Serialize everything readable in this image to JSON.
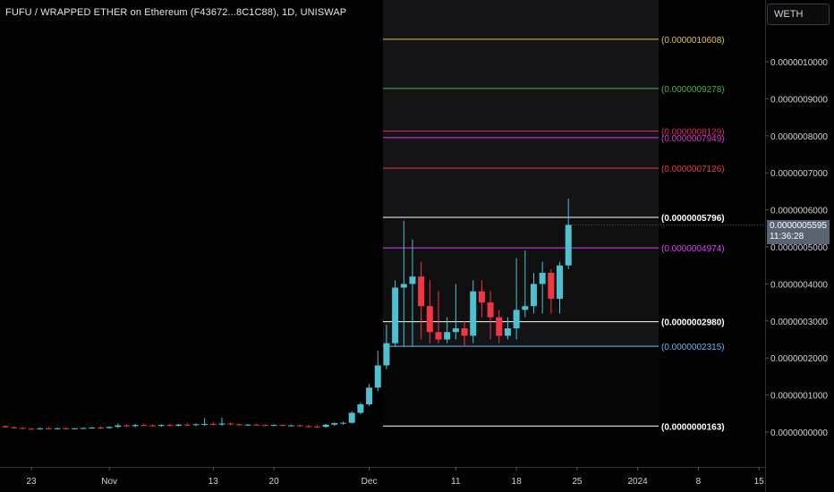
{
  "header": {
    "title": "FUFU / WRAPPED ETHER on Ethereum (F43672...8C1C88), 1D, UNISWAP"
  },
  "currency_selector": {
    "label": "WETH"
  },
  "last_price_tag": {
    "price": "0.0000005595",
    "countdown": "11:36:28"
  },
  "colors": {
    "up": "#26a69a",
    "up_fill": "#4ec0cf",
    "down": "#f23645",
    "background": "#000000"
  },
  "chart_data": {
    "type": "candlestick",
    "y_axis": {
      "range": [
        -1.3e-08,
        1.1e-06
      ],
      "ticks": [
        {
          "value": 0.0,
          "label": "0.0000000000"
        },
        {
          "value": 1e-07,
          "label": "0.0000001000"
        },
        {
          "value": 2e-07,
          "label": "0.0000002000"
        },
        {
          "value": 3e-07,
          "label": "0.0000003000"
        },
        {
          "value": 4e-07,
          "label": "0.0000004000"
        },
        {
          "value": 5e-07,
          "label": "0.0000005000"
        },
        {
          "value": 6e-07,
          "label": "0.0000006000"
        },
        {
          "value": 7e-07,
          "label": "0.0000007000"
        },
        {
          "value": 8e-07,
          "label": "0.0000008000"
        },
        {
          "value": 9e-07,
          "label": "0.0000009000"
        },
        {
          "value": 1e-06,
          "label": "0.0000010000"
        }
      ]
    },
    "x_axis": {
      "range": [
        0,
        123
      ],
      "ticks": [
        {
          "index": 3,
          "label": "23"
        },
        {
          "index": 12,
          "label": "Nov"
        },
        {
          "index": 24,
          "label": "13"
        },
        {
          "index": 31,
          "label": "20"
        },
        {
          "index": 42,
          "label": "Dec"
        },
        {
          "index": 52,
          "label": "11"
        },
        {
          "index": 59,
          "label": "18"
        },
        {
          "index": 66,
          "label": "25"
        },
        {
          "index": 73,
          "label": "2024"
        },
        {
          "index": 80,
          "label": "8"
        },
        {
          "index": 87,
          "label": "15"
        }
      ]
    },
    "fib_zone": {
      "start_index": 44,
      "end_index": 75
    },
    "fib_levels": [
      {
        "value": 1.0608e-06,
        "label": "(0.0000010608)",
        "color": "#e0c04a"
      },
      {
        "value": 9.278e-07,
        "label": "(0.0000009278)",
        "color": "#4caf50"
      },
      {
        "value": 8.129e-07,
        "label": "(0.0000008129)",
        "color": "#e91e63"
      },
      {
        "value": 7.949e-07,
        "label": "(0.0000007949)",
        "color": "#d63bd6"
      },
      {
        "value": 7.126e-07,
        "label": "(0.0000007126)",
        "color": "#f23645"
      },
      {
        "value": 5.796e-07,
        "label": "(0.0000005796)",
        "color": "#ffffff"
      },
      {
        "value": 4.974e-07,
        "label": "(0.0000004974)",
        "color": "#e040fb"
      },
      {
        "value": 2.98e-07,
        "label": "(0.0000002980)",
        "color": "#ffffff"
      },
      {
        "value": 2.315e-07,
        "label": "(0.0000002315)",
        "color": "#64b5f6"
      },
      {
        "value": 1.63e-08,
        "label": "(0.0000000163)",
        "color": "#ffffff"
      }
    ],
    "candles": [
      {
        "o": 1.6e-08,
        "h": 1.8e-08,
        "l": 1.2e-08,
        "c": 1.3e-08
      },
      {
        "o": 1.3e-08,
        "h": 1.5e-08,
        "l": 1e-08,
        "c": 1.1e-08
      },
      {
        "o": 1.1e-08,
        "h": 1.3e-08,
        "l": 8e-09,
        "c": 9e-09
      },
      {
        "o": 9e-09,
        "h": 1.1e-08,
        "l": 6e-09,
        "c": 8e-09
      },
      {
        "o": 8e-09,
        "h": 1.2e-08,
        "l": 6e-09,
        "c": 1e-08
      },
      {
        "o": 1e-08,
        "h": 1.3e-08,
        "l": 8e-09,
        "c": 9e-09
      },
      {
        "o": 9e-09,
        "h": 1.2e-08,
        "l": 7e-09,
        "c": 1e-08
      },
      {
        "o": 1e-08,
        "h": 1.3e-08,
        "l": 8e-09,
        "c": 9e-09
      },
      {
        "o": 9e-09,
        "h": 1.1e-08,
        "l": 7e-09,
        "c": 1e-08
      },
      {
        "o": 1e-08,
        "h": 1.3e-08,
        "l": 8e-09,
        "c": 1.1e-08
      },
      {
        "o": 1.1e-08,
        "h": 1.4e-08,
        "l": 9e-09,
        "c": 1.2e-08
      },
      {
        "o": 1.2e-08,
        "h": 1.5e-08,
        "l": 1e-08,
        "c": 1.1e-08
      },
      {
        "o": 1.1e-08,
        "h": 1.5e-08,
        "l": 9e-09,
        "c": 1.4e-08
      },
      {
        "o": 1.4e-08,
        "h": 2.3e-08,
        "l": 1.1e-08,
        "c": 1.8e-08
      },
      {
        "o": 1.8e-08,
        "h": 2.1e-08,
        "l": 1.4e-08,
        "c": 1.6e-08
      },
      {
        "o": 1.6e-08,
        "h": 2.2e-08,
        "l": 1.3e-08,
        "c": 1.9e-08
      },
      {
        "o": 1.9e-08,
        "h": 2.3e-08,
        "l": 1.6e-08,
        "c": 1.8e-08
      },
      {
        "o": 1.8e-08,
        "h": 2.1e-08,
        "l": 1.5e-08,
        "c": 1.7e-08
      },
      {
        "o": 1.7e-08,
        "h": 2.2e-08,
        "l": 1.4e-08,
        "c": 1.9e-08
      },
      {
        "o": 1.9e-08,
        "h": 2.2e-08,
        "l": 1.6e-08,
        "c": 1.7e-08
      },
      {
        "o": 1.7e-08,
        "h": 2.2e-08,
        "l": 1.5e-08,
        "c": 2e-08
      },
      {
        "o": 2e-08,
        "h": 2.4e-08,
        "l": 1.7e-08,
        "c": 1.9e-08
      },
      {
        "o": 1.9e-08,
        "h": 2.3e-08,
        "l": 1.6e-08,
        "c": 2.1e-08
      },
      {
        "o": 2.1e-08,
        "h": 3.8e-08,
        "l": 1.7e-08,
        "c": 2.2e-08
      },
      {
        "o": 2.2e-08,
        "h": 2.6e-08,
        "l": 1.8e-08,
        "c": 2e-08
      },
      {
        "o": 2e-08,
        "h": 3.9e-08,
        "l": 1.7e-08,
        "c": 2.3e-08
      },
      {
        "o": 2.3e-08,
        "h": 2.6e-08,
        "l": 1.9e-08,
        "c": 2.1e-08
      },
      {
        "o": 2.1e-08,
        "h": 2.3e-08,
        "l": 1.7e-08,
        "c": 1.9e-08
      },
      {
        "o": 1.9e-08,
        "h": 2.2e-08,
        "l": 1.6e-08,
        "c": 2e-08
      },
      {
        "o": 2e-08,
        "h": 2.3e-08,
        "l": 1.7e-08,
        "c": 1.9e-08
      },
      {
        "o": 1.9e-08,
        "h": 2.1e-08,
        "l": 1.6e-08,
        "c": 1.8e-08
      },
      {
        "o": 1.8e-08,
        "h": 2.1e-08,
        "l": 1.6e-08,
        "c": 1.9e-08
      },
      {
        "o": 1.9e-08,
        "h": 2.1e-08,
        "l": 1.6e-08,
        "c": 1.7e-08
      },
      {
        "o": 1.7e-08,
        "h": 2e-08,
        "l": 1.5e-08,
        "c": 1.8e-08
      },
      {
        "o": 1.8e-08,
        "h": 2e-08,
        "l": 1.4e-08,
        "c": 1.6e-08
      },
      {
        "o": 1.6e-08,
        "h": 1.9e-08,
        "l": 1.3e-08,
        "c": 1.5e-08
      },
      {
        "o": 1.5e-08,
        "h": 1.8e-08,
        "l": 1.2e-08,
        "c": 1.4e-08
      },
      {
        "o": 1.4e-08,
        "h": 2.2e-08,
        "l": 1.2e-08,
        "c": 2e-08
      },
      {
        "o": 2e-08,
        "h": 2.6e-08,
        "l": 1.6e-08,
        "c": 2.4e-08
      },
      {
        "o": 2.4e-08,
        "h": 2.8e-08,
        "l": 2e-08,
        "c": 2.5e-08
      },
      {
        "o": 2.5e-08,
        "h": 5.6e-08,
        "l": 2.3e-08,
        "c": 5.2e-08
      },
      {
        "o": 5.2e-08,
        "h": 8e-08,
        "l": 4.8e-08,
        "c": 7.5e-08
      },
      {
        "o": 7.5e-08,
        "h": 1.3e-07,
        "l": 7e-08,
        "c": 1.2e-07
      },
      {
        "o": 1.2e-07,
        "h": 2.2e-07,
        "l": 1.1e-07,
        "c": 1.8e-07
      },
      {
        "o": 1.8e-07,
        "h": 2.9e-07,
        "l": 1.7e-07,
        "c": 2.4e-07
      },
      {
        "o": 2.4e-07,
        "h": 4.1e-07,
        "l": 2.3e-07,
        "c": 3.9e-07
      },
      {
        "o": 3.9e-07,
        "h": 5.7e-07,
        "l": 2.3e-07,
        "c": 4e-07
      },
      {
        "o": 4e-07,
        "h": 5.2e-07,
        "l": 2.3e-07,
        "c": 4.2e-07
      },
      {
        "o": 4.2e-07,
        "h": 4.6e-07,
        "l": 2.5e-07,
        "c": 3.4e-07
      },
      {
        "o": 3.4e-07,
        "h": 4.1e-07,
        "l": 2.4e-07,
        "c": 2.7e-07
      },
      {
        "o": 2.7e-07,
        "h": 3.8e-07,
        "l": 2.4e-07,
        "c": 2.5e-07
      },
      {
        "o": 2.5e-07,
        "h": 3.1e-07,
        "l": 2.4e-07,
        "c": 2.7e-07
      },
      {
        "o": 2.7e-07,
        "h": 4e-07,
        "l": 2.5e-07,
        "c": 2.8e-07
      },
      {
        "o": 2.8e-07,
        "h": 3e-07,
        "l": 2.3e-07,
        "c": 2.6e-07
      },
      {
        "o": 2.6e-07,
        "h": 4.1e-07,
        "l": 2.4e-07,
        "c": 3.8e-07
      },
      {
        "o": 3.8e-07,
        "h": 4.1e-07,
        "l": 3.1e-07,
        "c": 3.5e-07
      },
      {
        "o": 3.5e-07,
        "h": 3.8e-07,
        "l": 2.5e-07,
        "c": 3.1e-07
      },
      {
        "o": 3.1e-07,
        "h": 3.3e-07,
        "l": 2.4e-07,
        "c": 2.6e-07
      },
      {
        "o": 2.6e-07,
        "h": 3.1e-07,
        "l": 2.5e-07,
        "c": 2.8e-07
      },
      {
        "o": 2.8e-07,
        "h": 4.7e-07,
        "l": 2.5e-07,
        "c": 3.3e-07
      },
      {
        "o": 3.3e-07,
        "h": 4.9e-07,
        "l": 3.1e-07,
        "c": 3.4e-07
      },
      {
        "o": 3.4e-07,
        "h": 4.3e-07,
        "l": 3.2e-07,
        "c": 4e-07
      },
      {
        "o": 4e-07,
        "h": 4.6e-07,
        "l": 3.2e-07,
        "c": 4.3e-07
      },
      {
        "o": 4.3e-07,
        "h": 4.4e-07,
        "l": 3.2e-07,
        "c": 3.6e-07
      },
      {
        "o": 3.6e-07,
        "h": 4.6e-07,
        "l": 3.2e-07,
        "c": 4.5e-07
      },
      {
        "o": 4.5e-07,
        "h": 6.3e-07,
        "l": 4.4e-07,
        "c": 5.595e-07
      }
    ],
    "candle_start_index": 0,
    "last_price": 5.595e-07
  }
}
